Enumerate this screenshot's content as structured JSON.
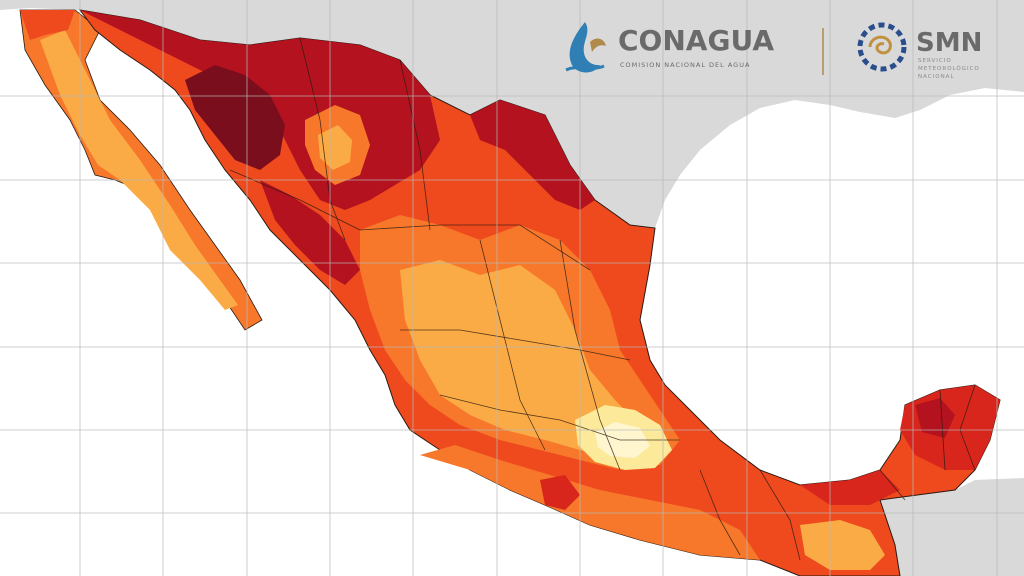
{
  "branding": {
    "conagua_name": "CONAGUA",
    "conagua_subtitle": "COMISION NACIONAL DEL AGUA",
    "smn_name": "SMN",
    "smn_subtitle_line1": "SERVICIO",
    "smn_subtitle_line2": "METEOROLÓGICO",
    "smn_subtitle_line3": "NACIONAL"
  },
  "map": {
    "subject": "Mexico temperature map",
    "grid_visible": true,
    "colors": {
      "ocean": "#ffffff",
      "neighbor_land": "#d9d9d9",
      "grid": "#b8b8b8",
      "borders": "#2b1a12",
      "hottest": "#7a0e1c",
      "very_hot": "#b3121e",
      "hot": "#d8261c",
      "warm": "#ee4a1e",
      "mild": "#f7782a",
      "cool": "#fbab45",
      "coolest": "#fde99a"
    }
  }
}
